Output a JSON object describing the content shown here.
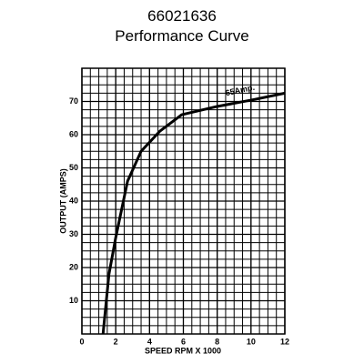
{
  "chart_data": {
    "type": "line",
    "title": "66021636",
    "subtitle": "Performance Curve",
    "x_label": "SPEED RPM X 1000",
    "y_label": "OUTPUT (AMPS)",
    "annotation": "65Amp.",
    "x": [
      1.25,
      1.6,
      2.0,
      2.7,
      3.5,
      4.6,
      5.9,
      8,
      10.2,
      12
    ],
    "series": [
      {
        "color": "#000000",
        "values": [
          0,
          18,
          29,
          46,
          55,
          61,
          66,
          68.5,
          70.6,
          72.5
        ]
      }
    ],
    "xlim": [
      0,
      12
    ],
    "xticks": [
      0,
      2,
      4,
      6,
      8,
      10,
      12
    ],
    "ylim": [
      0,
      80
    ],
    "yticks": [
      10,
      20,
      30,
      40,
      50,
      60,
      70
    ],
    "grid": true
  }
}
